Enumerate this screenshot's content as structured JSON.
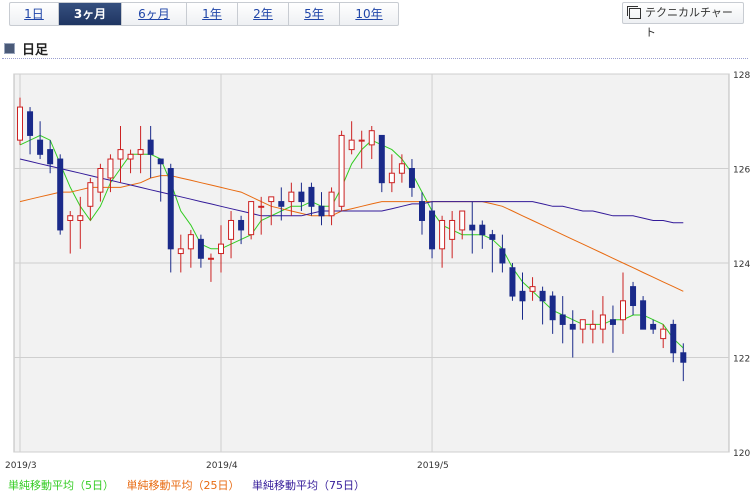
{
  "period_tabs": [
    {
      "label": "1日",
      "active": false
    },
    {
      "label": "3ヶ月",
      "active": true
    },
    {
      "label": "6ヶ月",
      "active": false
    },
    {
      "label": "1年",
      "active": false
    },
    {
      "label": "2年",
      "active": false
    },
    {
      "label": "5年",
      "active": false
    },
    {
      "label": "10年",
      "active": false
    }
  ],
  "technical_chart_button": "テクニカルチャート",
  "section_title": "日足",
  "colors": {
    "up_candle": "#cc2222",
    "down_candle": "#1a2a8a",
    "ma5": "#33cc22",
    "ma25": "#e86a10",
    "ma75": "#331a99",
    "plot_bg": "#f2f2f2",
    "grid": "#cfcfcf"
  },
  "legend": [
    {
      "label": "単純移動平均（5日）",
      "color": "#33cc22"
    },
    {
      "label": "単純移動平均（25日）",
      "color": "#e86a10"
    },
    {
      "label": "単純移動平均（75日）",
      "color": "#331a99"
    }
  ],
  "chart_data": {
    "type": "candlestick",
    "title": "",
    "ylim": [
      120,
      128
    ],
    "y_ticks": [
      "120",
      "122",
      "124",
      "126",
      "128"
    ],
    "y_axis_position": "right",
    "x_ticks": [
      {
        "label": "2019/3",
        "index": 0
      },
      {
        "label": "2019/4",
        "index": 20
      },
      {
        "label": "2019/5",
        "index": 41
      }
    ],
    "grid": true,
    "ohlc": [
      [
        126.6,
        127.5,
        126.5,
        127.3
      ],
      [
        127.2,
        127.3,
        126.3,
        126.7
      ],
      [
        126.6,
        127.0,
        126.2,
        126.3
      ],
      [
        126.4,
        126.6,
        125.9,
        126.1
      ],
      [
        126.2,
        126.3,
        124.6,
        124.7
      ],
      [
        124.9,
        125.1,
        124.2,
        125.0
      ],
      [
        124.9,
        125.4,
        124.3,
        125.0
      ],
      [
        125.2,
        125.8,
        124.9,
        125.7
      ],
      [
        125.5,
        126.1,
        125.3,
        126.0
      ],
      [
        125.8,
        126.3,
        125.5,
        126.2
      ],
      [
        126.2,
        126.9,
        125.7,
        126.4
      ],
      [
        126.2,
        126.4,
        125.9,
        126.3
      ],
      [
        126.3,
        126.9,
        125.9,
        126.4
      ],
      [
        126.6,
        126.9,
        125.8,
        126.3
      ],
      [
        126.2,
        126.2,
        125.3,
        126.1
      ],
      [
        126.0,
        126.1,
        123.8,
        124.3
      ],
      [
        124.2,
        124.6,
        123.8,
        124.3
      ],
      [
        124.3,
        124.7,
        123.9,
        124.6
      ],
      [
        124.5,
        124.6,
        123.9,
        124.1
      ],
      [
        124.1,
        124.2,
        123.6,
        124.1
      ],
      [
        124.2,
        124.8,
        123.8,
        124.4
      ],
      [
        124.5,
        125.1,
        124.1,
        124.9
      ],
      [
        124.9,
        125.0,
        124.4,
        124.7
      ],
      [
        124.6,
        125.3,
        124.5,
        125.3
      ],
      [
        125.2,
        125.4,
        124.6,
        125.2
      ],
      [
        125.3,
        125.4,
        124.8,
        125.4
      ],
      [
        125.3,
        125.6,
        124.9,
        125.2
      ],
      [
        125.3,
        125.7,
        125.0,
        125.5
      ],
      [
        125.5,
        125.7,
        125.1,
        125.3
      ],
      [
        125.6,
        125.7,
        125.0,
        125.2
      ],
      [
        125.2,
        125.5,
        124.8,
        125.0
      ],
      [
        125.0,
        125.6,
        124.8,
        125.5
      ],
      [
        125.2,
        126.8,
        125.1,
        126.7
      ],
      [
        126.4,
        127.0,
        126.3,
        126.6
      ],
      [
        126.6,
        126.8,
        126.0,
        126.6
      ],
      [
        126.5,
        126.9,
        126.2,
        126.8
      ],
      [
        126.7,
        126.7,
        125.5,
        125.7
      ],
      [
        125.7,
        126.3,
        125.5,
        125.9
      ],
      [
        125.9,
        126.3,
        125.7,
        126.1
      ],
      [
        126.0,
        126.2,
        125.4,
        125.6
      ],
      [
        125.3,
        125.5,
        124.6,
        124.9
      ],
      [
        125.1,
        125.3,
        124.1,
        124.3
      ],
      [
        124.3,
        125.0,
        123.9,
        124.9
      ],
      [
        124.5,
        125.1,
        124.1,
        124.9
      ],
      [
        124.7,
        125.1,
        124.5,
        125.1
      ],
      [
        124.8,
        125.3,
        124.2,
        124.7
      ],
      [
        124.8,
        124.9,
        124.3,
        124.6
      ],
      [
        124.6,
        124.7,
        123.8,
        124.5
      ],
      [
        124.3,
        124.6,
        123.8,
        124.0
      ],
      [
        123.9,
        124.0,
        123.2,
        123.3
      ],
      [
        123.4,
        123.8,
        122.8,
        123.2
      ],
      [
        123.4,
        123.7,
        123.2,
        123.5
      ],
      [
        123.4,
        123.5,
        122.7,
        123.2
      ],
      [
        123.3,
        123.4,
        122.5,
        122.8
      ],
      [
        122.9,
        123.3,
        122.3,
        122.7
      ],
      [
        122.7,
        123.0,
        122.0,
        122.6
      ],
      [
        122.6,
        122.8,
        122.3,
        122.8
      ],
      [
        122.6,
        123.0,
        122.3,
        122.7
      ],
      [
        122.6,
        123.3,
        122.3,
        122.9
      ],
      [
        122.8,
        123.1,
        122.1,
        122.7
      ],
      [
        122.8,
        123.8,
        122.5,
        123.2
      ],
      [
        123.5,
        123.6,
        122.9,
        123.1
      ],
      [
        123.2,
        123.3,
        122.6,
        122.6
      ],
      [
        122.7,
        122.8,
        122.5,
        122.6
      ],
      [
        122.4,
        122.7,
        122.2,
        122.6
      ],
      [
        122.7,
        122.8,
        121.9,
        122.1
      ],
      [
        122.1,
        122.3,
        121.5,
        121.9
      ]
    ],
    "series": [
      {
        "name": "単純移動平均（5日）",
        "values": [
          126.5,
          126.6,
          126.7,
          126.6,
          126.1,
          125.6,
          125.2,
          124.9,
          125.2,
          125.7,
          126.0,
          126.3,
          126.3,
          126.3,
          126.2,
          125.7,
          125.1,
          124.8,
          124.4,
          124.3,
          124.3,
          124.4,
          124.5,
          124.6,
          124.9,
          125.0,
          125.1,
          125.2,
          125.2,
          125.3,
          125.2,
          125.2,
          125.6,
          126.1,
          126.4,
          126.6,
          126.5,
          126.4,
          126.2,
          125.9,
          125.5,
          125.1,
          124.8,
          124.7,
          124.6,
          124.6,
          124.6,
          124.5,
          124.3,
          123.9,
          123.6,
          123.4,
          123.2,
          123.0,
          122.9,
          122.8,
          122.7,
          122.7,
          122.7,
          122.8,
          122.8,
          122.9,
          122.9,
          122.8,
          122.7,
          122.4,
          122.2
        ]
      },
      {
        "name": "単純移動平均（25日）",
        "values": [
          125.3,
          125.35,
          125.4,
          125.45,
          125.5,
          125.5,
          125.55,
          125.6,
          125.6,
          125.6,
          125.6,
          125.65,
          125.7,
          125.8,
          125.85,
          125.85,
          125.8,
          125.75,
          125.7,
          125.65,
          125.6,
          125.55,
          125.5,
          125.4,
          125.3,
          125.2,
          125.15,
          125.1,
          125.05,
          125.0,
          125.0,
          125.0,
          125.1,
          125.15,
          125.2,
          125.25,
          125.3,
          125.3,
          125.3,
          125.3,
          125.3,
          125.3,
          125.3,
          125.3,
          125.3,
          125.3,
          125.3,
          125.25,
          125.2,
          125.1,
          125.0,
          124.9,
          124.8,
          124.7,
          124.6,
          124.5,
          124.4,
          124.3,
          124.2,
          124.1,
          124.0,
          123.9,
          123.8,
          123.7,
          123.6,
          123.5,
          123.4
        ]
      },
      {
        "name": "単純移動平均（75日）",
        "values": [
          126.2,
          126.15,
          126.1,
          126.05,
          126.0,
          125.95,
          125.9,
          125.85,
          125.8,
          125.75,
          125.7,
          125.65,
          125.6,
          125.55,
          125.5,
          125.45,
          125.4,
          125.35,
          125.3,
          125.25,
          125.2,
          125.15,
          125.1,
          125.05,
          125.0,
          125.0,
          125.0,
          125.0,
          125.0,
          125.05,
          125.1,
          125.1,
          125.1,
          125.1,
          125.1,
          125.1,
          125.1,
          125.15,
          125.2,
          125.25,
          125.25,
          125.3,
          125.3,
          125.3,
          125.3,
          125.3,
          125.3,
          125.3,
          125.3,
          125.3,
          125.3,
          125.3,
          125.25,
          125.2,
          125.2,
          125.15,
          125.1,
          125.1,
          125.05,
          125.0,
          125.0,
          125.0,
          124.95,
          124.9,
          124.9,
          124.85,
          124.85
        ]
      }
    ]
  }
}
